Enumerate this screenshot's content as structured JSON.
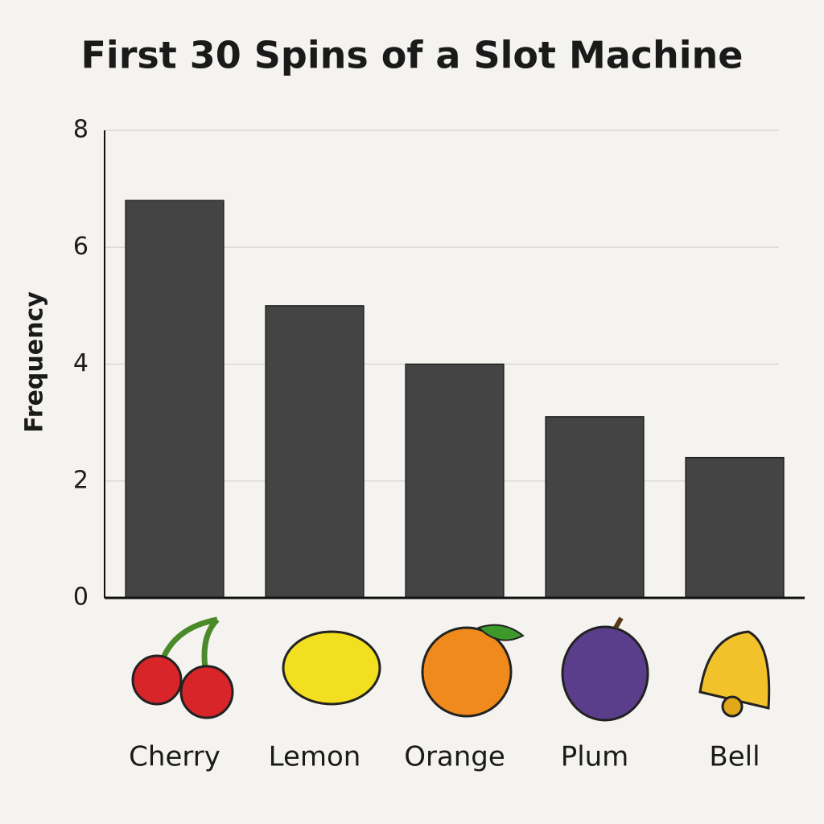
{
  "chart_data": {
    "type": "bar",
    "title": "First 30 Spins of a Slot Machine",
    "y_label": "Frequency",
    "categories": [
      "Cherry",
      "Lemon",
      "Orange",
      "Plum",
      "Bell"
    ],
    "values": [
      6.8,
      5,
      4,
      3.1,
      2.4
    ],
    "color": "#444444",
    "ylim": [
      0,
      8
    ],
    "yticks": [
      0,
      2,
      4,
      6,
      8
    ],
    "grid": true
  }
}
